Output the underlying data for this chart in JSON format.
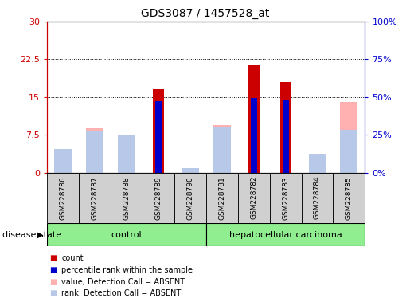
{
  "title": "GDS3087 / 1457528_at",
  "samples": [
    "GSM228786",
    "GSM228787",
    "GSM228788",
    "GSM228789",
    "GSM228790",
    "GSM228781",
    "GSM228782",
    "GSM228783",
    "GSM228784",
    "GSM228785"
  ],
  "red_bars": [
    0,
    0,
    0,
    16.5,
    0,
    0,
    21.5,
    18.0,
    0,
    0
  ],
  "blue_bars": [
    0,
    0,
    0,
    14.2,
    0,
    0,
    14.8,
    14.5,
    0,
    0
  ],
  "pink_bars": [
    1.8,
    8.8,
    7.2,
    0,
    0,
    9.5,
    0,
    0,
    1.0,
    14.0
  ],
  "lav_bars": [
    4.8,
    8.2,
    7.6,
    0,
    1.0,
    9.2,
    0,
    0,
    3.8,
    8.5
  ],
  "ylim_left": [
    0,
    30
  ],
  "ylim_right": [
    0,
    100
  ],
  "yticks_left": [
    0,
    7.5,
    15,
    22.5,
    30
  ],
  "yticks_left_labels": [
    "0",
    "7.5",
    "15",
    "22.5",
    "30"
  ],
  "yticks_right": [
    0,
    25,
    50,
    75,
    100
  ],
  "yticks_right_labels": [
    "0%",
    "25%",
    "50%",
    "75%",
    "100%"
  ],
  "left_axis_color": "#cc0000",
  "right_axis_color": "#0000cc",
  "bar_color_red": "#cc0000",
  "bar_color_blue": "#0000cc",
  "bar_color_pink": "#ffb0b0",
  "bar_color_lav": "#b8c8e8",
  "group_label_control": "control",
  "group_label_cancer": "hepatocellular carcinoma",
  "disease_state_label": "disease state",
  "green_color": "#90ee90",
  "gray_color": "#d0d0d0",
  "legend_labels": [
    "count",
    "percentile rank within the sample",
    "value, Detection Call = ABSENT",
    "rank, Detection Call = ABSENT"
  ],
  "legend_colors": [
    "#cc0000",
    "#0000cc",
    "#ffb0b0",
    "#b8c8e8"
  ]
}
